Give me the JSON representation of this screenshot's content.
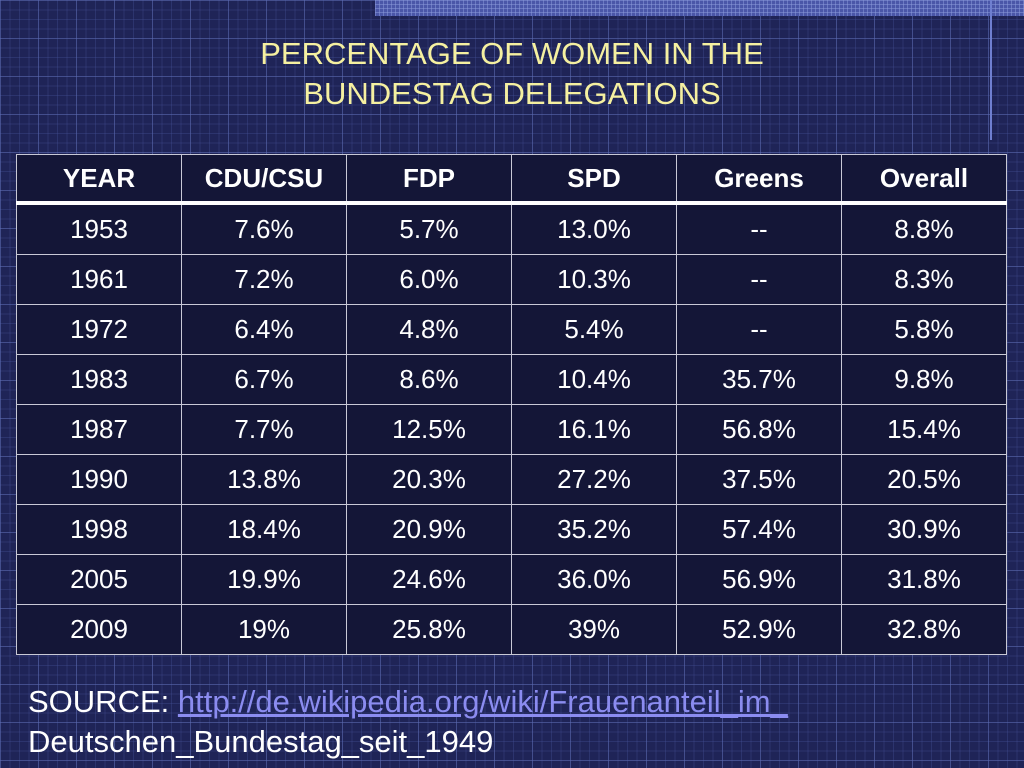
{
  "slide": {
    "title_line1": "PERCENTAGE OF WOMEN IN THE",
    "title_line2": "BUNDESTAG DELEGATIONS",
    "source_label": "SOURCE:",
    "source_link": "http://de.wikipedia.org/wiki/Frauenanteil_im_",
    "source_line2": "Deutschen_Bundestag_seit_1949",
    "colors": {
      "background": "#1f2457",
      "title": "#f5f0a0",
      "link": "#8b8cf0",
      "table_bg": "#141637"
    }
  },
  "chart_data": {
    "type": "table",
    "title": "PERCENTAGE OF WOMEN IN THE BUNDESTAG DELEGATIONS",
    "columns": [
      "YEAR",
      "CDU/CSU",
      "FDP",
      "SPD",
      "Greens",
      "Overall"
    ],
    "rows": [
      [
        "1953",
        "7.6%",
        "5.7%",
        "13.0%",
        "--",
        "8.8%"
      ],
      [
        "1961",
        "7.2%",
        "6.0%",
        "10.3%",
        "--",
        "8.3%"
      ],
      [
        "1972",
        "6.4%",
        "4.8%",
        "5.4%",
        "--",
        "5.8%"
      ],
      [
        "1983",
        "6.7%",
        "8.6%",
        "10.4%",
        "35.7%",
        "9.8%"
      ],
      [
        "1987",
        "7.7%",
        "12.5%",
        "16.1%",
        "56.8%",
        "15.4%"
      ],
      [
        "1990",
        "13.8%",
        "20.3%",
        "27.2%",
        "37.5%",
        "20.5%"
      ],
      [
        "1998",
        "18.4%",
        "20.9%",
        "35.2%",
        "57.4%",
        "30.9%"
      ],
      [
        "2005",
        "19.9%",
        "24.6%",
        "36.0%",
        "56.9%",
        "31.8%"
      ],
      [
        "2009",
        "19%",
        "25.8%",
        "39%",
        "52.9%",
        "32.8%"
      ]
    ]
  }
}
